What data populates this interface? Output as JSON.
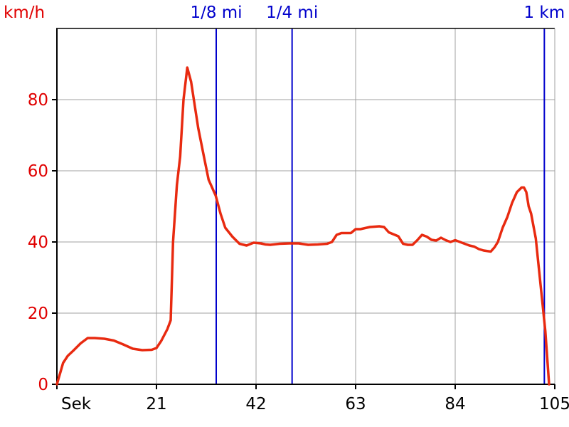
{
  "chart_data": {
    "type": "line",
    "title": "",
    "y_unit_label": "km/h",
    "x_unit_label": "Sek",
    "xlim": [
      0,
      105
    ],
    "ylim": [
      0,
      100
    ],
    "x_ticks": [
      0,
      21,
      42,
      63,
      84,
      105
    ],
    "x_tick_labels": [
      "",
      "21",
      "42",
      "63",
      "84",
      "105"
    ],
    "y_ticks": [
      0,
      20,
      40,
      60,
      80
    ],
    "y_tick_labels": [
      "0",
      "20",
      "40",
      "60",
      "80"
    ],
    "grid": true,
    "colors": {
      "series": "#e82a10",
      "markers": "#0000cc",
      "grid": "#a0a0a0",
      "axis": "#000000",
      "y_text": "#e00000"
    },
    "distance_markers": [
      {
        "label": "1/8 mi",
        "x": 33.6
      },
      {
        "label": "1/4 mi",
        "x": 49.6
      },
      {
        "label": "1 km",
        "x": 102.8
      }
    ],
    "series": [
      {
        "x": [
          0,
          1.3,
          2.3,
          3.5,
          5,
          6.5,
          8,
          10,
          12,
          14,
          16,
          18,
          20,
          21,
          22,
          23.3,
          24,
          24.5,
          25.3,
          26,
          26.7,
          27.5,
          28.3,
          29,
          29.8,
          31,
          32,
          33.5,
          34.5,
          35.5,
          37,
          38.5,
          40,
          41.5,
          43,
          44,
          45,
          47,
          49,
          51,
          53,
          55,
          57,
          58,
          59,
          60,
          62,
          63,
          64,
          66,
          68,
          69,
          70,
          72,
          73,
          74,
          75,
          76,
          77,
          78,
          79,
          80,
          81,
          82,
          83,
          84,
          85,
          87,
          88,
          89,
          90,
          91.5,
          92.3,
          93,
          94,
          95,
          96,
          97,
          98,
          98.5,
          99,
          99.5,
          100,
          101,
          102,
          103,
          103.8
        ],
        "y": [
          0,
          6,
          8,
          9.5,
          11.5,
          13,
          13,
          12.8,
          12.3,
          11.2,
          10,
          9.6,
          9.7,
          10.2,
          12.2,
          15.5,
          18,
          40,
          56,
          64,
          80,
          89,
          85,
          79,
          72,
          64,
          57.5,
          53,
          48,
          44,
          41.5,
          39.5,
          39,
          39.8,
          39.6,
          39.3,
          39.2,
          39.5,
          39.6,
          39.6,
          39.2,
          39.3,
          39.5,
          40,
          42,
          42.5,
          42.5,
          43.6,
          43.6,
          44.2,
          44.4,
          44.2,
          42.7,
          41.6,
          39.5,
          39.2,
          39.2,
          40.5,
          42,
          41.5,
          40.6,
          40.4,
          41.2,
          40.5,
          40,
          40.5,
          40,
          39,
          38.7,
          38,
          37.6,
          37.3,
          38.5,
          40,
          44,
          47,
          51,
          54,
          55.3,
          55.3,
          54,
          50,
          48,
          41,
          28,
          15,
          0
        ]
      }
    ]
  }
}
